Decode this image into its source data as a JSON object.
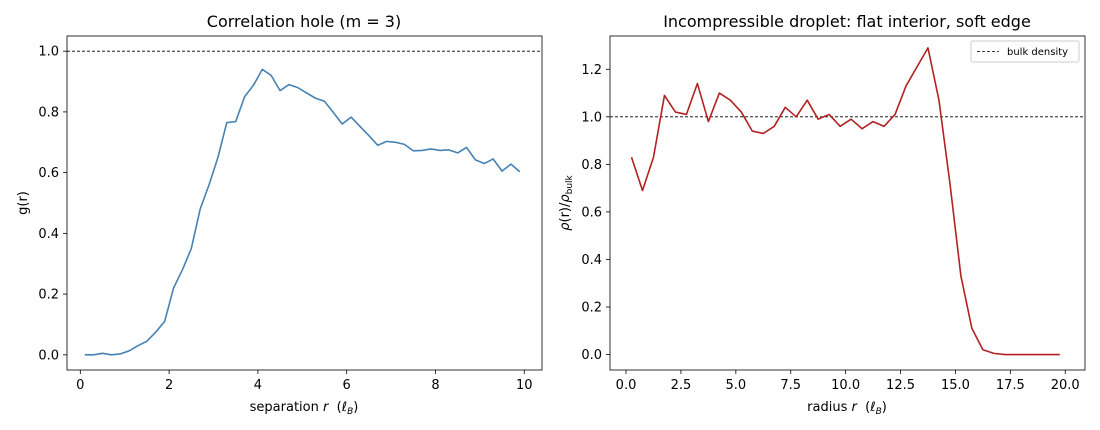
{
  "chart_data": [
    {
      "type": "line",
      "title": "Correlation hole (m = 3)",
      "xlabel_main": "separation ",
      "xlabel_var": "r",
      "xlabel_unit_prefix": "  (",
      "xlabel_unit_var": "ℓ",
      "xlabel_unit_sub": "B",
      "xlabel_unit_suffix": ")",
      "ylabel": "g(r)",
      "xlim": [
        -0.3,
        10.4
      ],
      "ylim": [
        -0.05,
        1.05
      ],
      "xticks": [
        0,
        2,
        4,
        6,
        8,
        10
      ],
      "xtick_labels": [
        "0",
        "2",
        "4",
        "6",
        "8",
        "10"
      ],
      "yticks": [
        0.0,
        0.2,
        0.4,
        0.6,
        0.8,
        1.0
      ],
      "ytick_labels": [
        "0.0",
        "0.2",
        "0.4",
        "0.6",
        "0.8",
        "1.0"
      ],
      "reference_line": {
        "y": 1.0,
        "style": "dashed",
        "color": "#000000"
      },
      "grid": false,
      "series": [
        {
          "color": "#4682b4",
          "x": [
            0.1,
            0.3,
            0.5,
            0.7,
            0.9,
            1.1,
            1.3,
            1.5,
            1.7,
            1.9,
            2.1,
            2.3,
            2.5,
            2.7,
            2.9,
            3.1,
            3.3,
            3.5,
            3.7,
            3.9,
            4.1,
            4.3,
            4.5,
            4.7,
            4.9,
            5.1,
            5.3,
            5.5,
            5.7,
            5.9,
            6.1,
            6.3,
            6.5,
            6.7,
            6.9,
            7.1,
            7.3,
            7.5,
            7.7,
            7.9,
            8.1,
            8.3,
            8.5,
            8.7,
            8.9,
            9.1,
            9.3,
            9.5,
            9.7,
            9.9
          ],
          "y": [
            0.0,
            0.0,
            0.005,
            0.0,
            0.003,
            0.013,
            0.03,
            0.045,
            0.075,
            0.11,
            0.22,
            0.28,
            0.35,
            0.48,
            0.56,
            0.65,
            0.765,
            0.768,
            0.85,
            0.888,
            0.94,
            0.92,
            0.87,
            0.89,
            0.88,
            0.862,
            0.845,
            0.835,
            0.798,
            0.76,
            0.783,
            0.752,
            0.722,
            0.69,
            0.703,
            0.7,
            0.693,
            0.672,
            0.673,
            0.678,
            0.673,
            0.675,
            0.665,
            0.683,
            0.642,
            0.63,
            0.645,
            0.605,
            0.628,
            0.603
          ]
        }
      ]
    },
    {
      "type": "line",
      "title": "Incompressible droplet: flat interior, soft edge",
      "xlabel_main": "radius ",
      "xlabel_var": "r",
      "xlabel_unit_prefix": "  (",
      "xlabel_unit_var": "ℓ",
      "xlabel_unit_sub": "B",
      "xlabel_unit_suffix": ")",
      "ylabel_rho": "ρ",
      "ylabel_r": "(r)/",
      "ylabel_rho2": "ρ",
      "ylabel_sub": "bulk",
      "xlim": [
        -0.73,
        20.9
      ],
      "ylim": [
        -0.065,
        1.34
      ],
      "xticks": [
        0.0,
        2.5,
        5.0,
        7.5,
        10.0,
        12.5,
        15.0,
        17.5,
        20.0
      ],
      "xtick_labels": [
        "0.0",
        "2.5",
        "5.0",
        "7.5",
        "10.0",
        "12.5",
        "15.0",
        "17.5",
        "20.0"
      ],
      "yticks": [
        0.0,
        0.2,
        0.4,
        0.6,
        0.8,
        1.0,
        1.2
      ],
      "ytick_labels": [
        "0.0",
        "0.2",
        "0.4",
        "0.6",
        "0.8",
        "1.0",
        "1.2"
      ],
      "reference_line": {
        "y": 1.0,
        "style": "dashed",
        "color": "#000000"
      },
      "legend": {
        "position": "upper right",
        "label": "bulk density"
      },
      "grid": false,
      "series": [
        {
          "color": "#b22222",
          "x": [
            0.25,
            0.75,
            1.25,
            1.75,
            2.25,
            2.75,
            3.25,
            3.75,
            4.25,
            4.75,
            5.25,
            5.75,
            6.25,
            6.75,
            7.25,
            7.75,
            8.25,
            8.75,
            9.25,
            9.75,
            10.25,
            10.75,
            11.25,
            11.75,
            12.25,
            12.75,
            13.25,
            13.75,
            14.25,
            14.75,
            15.25,
            15.75,
            16.25,
            16.75,
            17.25,
            17.75,
            18.25,
            18.75,
            19.25,
            19.75
          ],
          "y": [
            0.83,
            0.69,
            0.83,
            1.09,
            1.02,
            1.01,
            1.14,
            0.98,
            1.1,
            1.07,
            1.02,
            0.94,
            0.93,
            0.96,
            1.04,
            1.0,
            1.07,
            0.99,
            1.01,
            0.96,
            0.99,
            0.95,
            0.98,
            0.96,
            1.01,
            1.13,
            1.21,
            1.29,
            1.07,
            0.72,
            0.33,
            0.11,
            0.02,
            0.005,
            0.0,
            0.0,
            0.0,
            0.0,
            0.0,
            0.0
          ]
        }
      ]
    }
  ]
}
